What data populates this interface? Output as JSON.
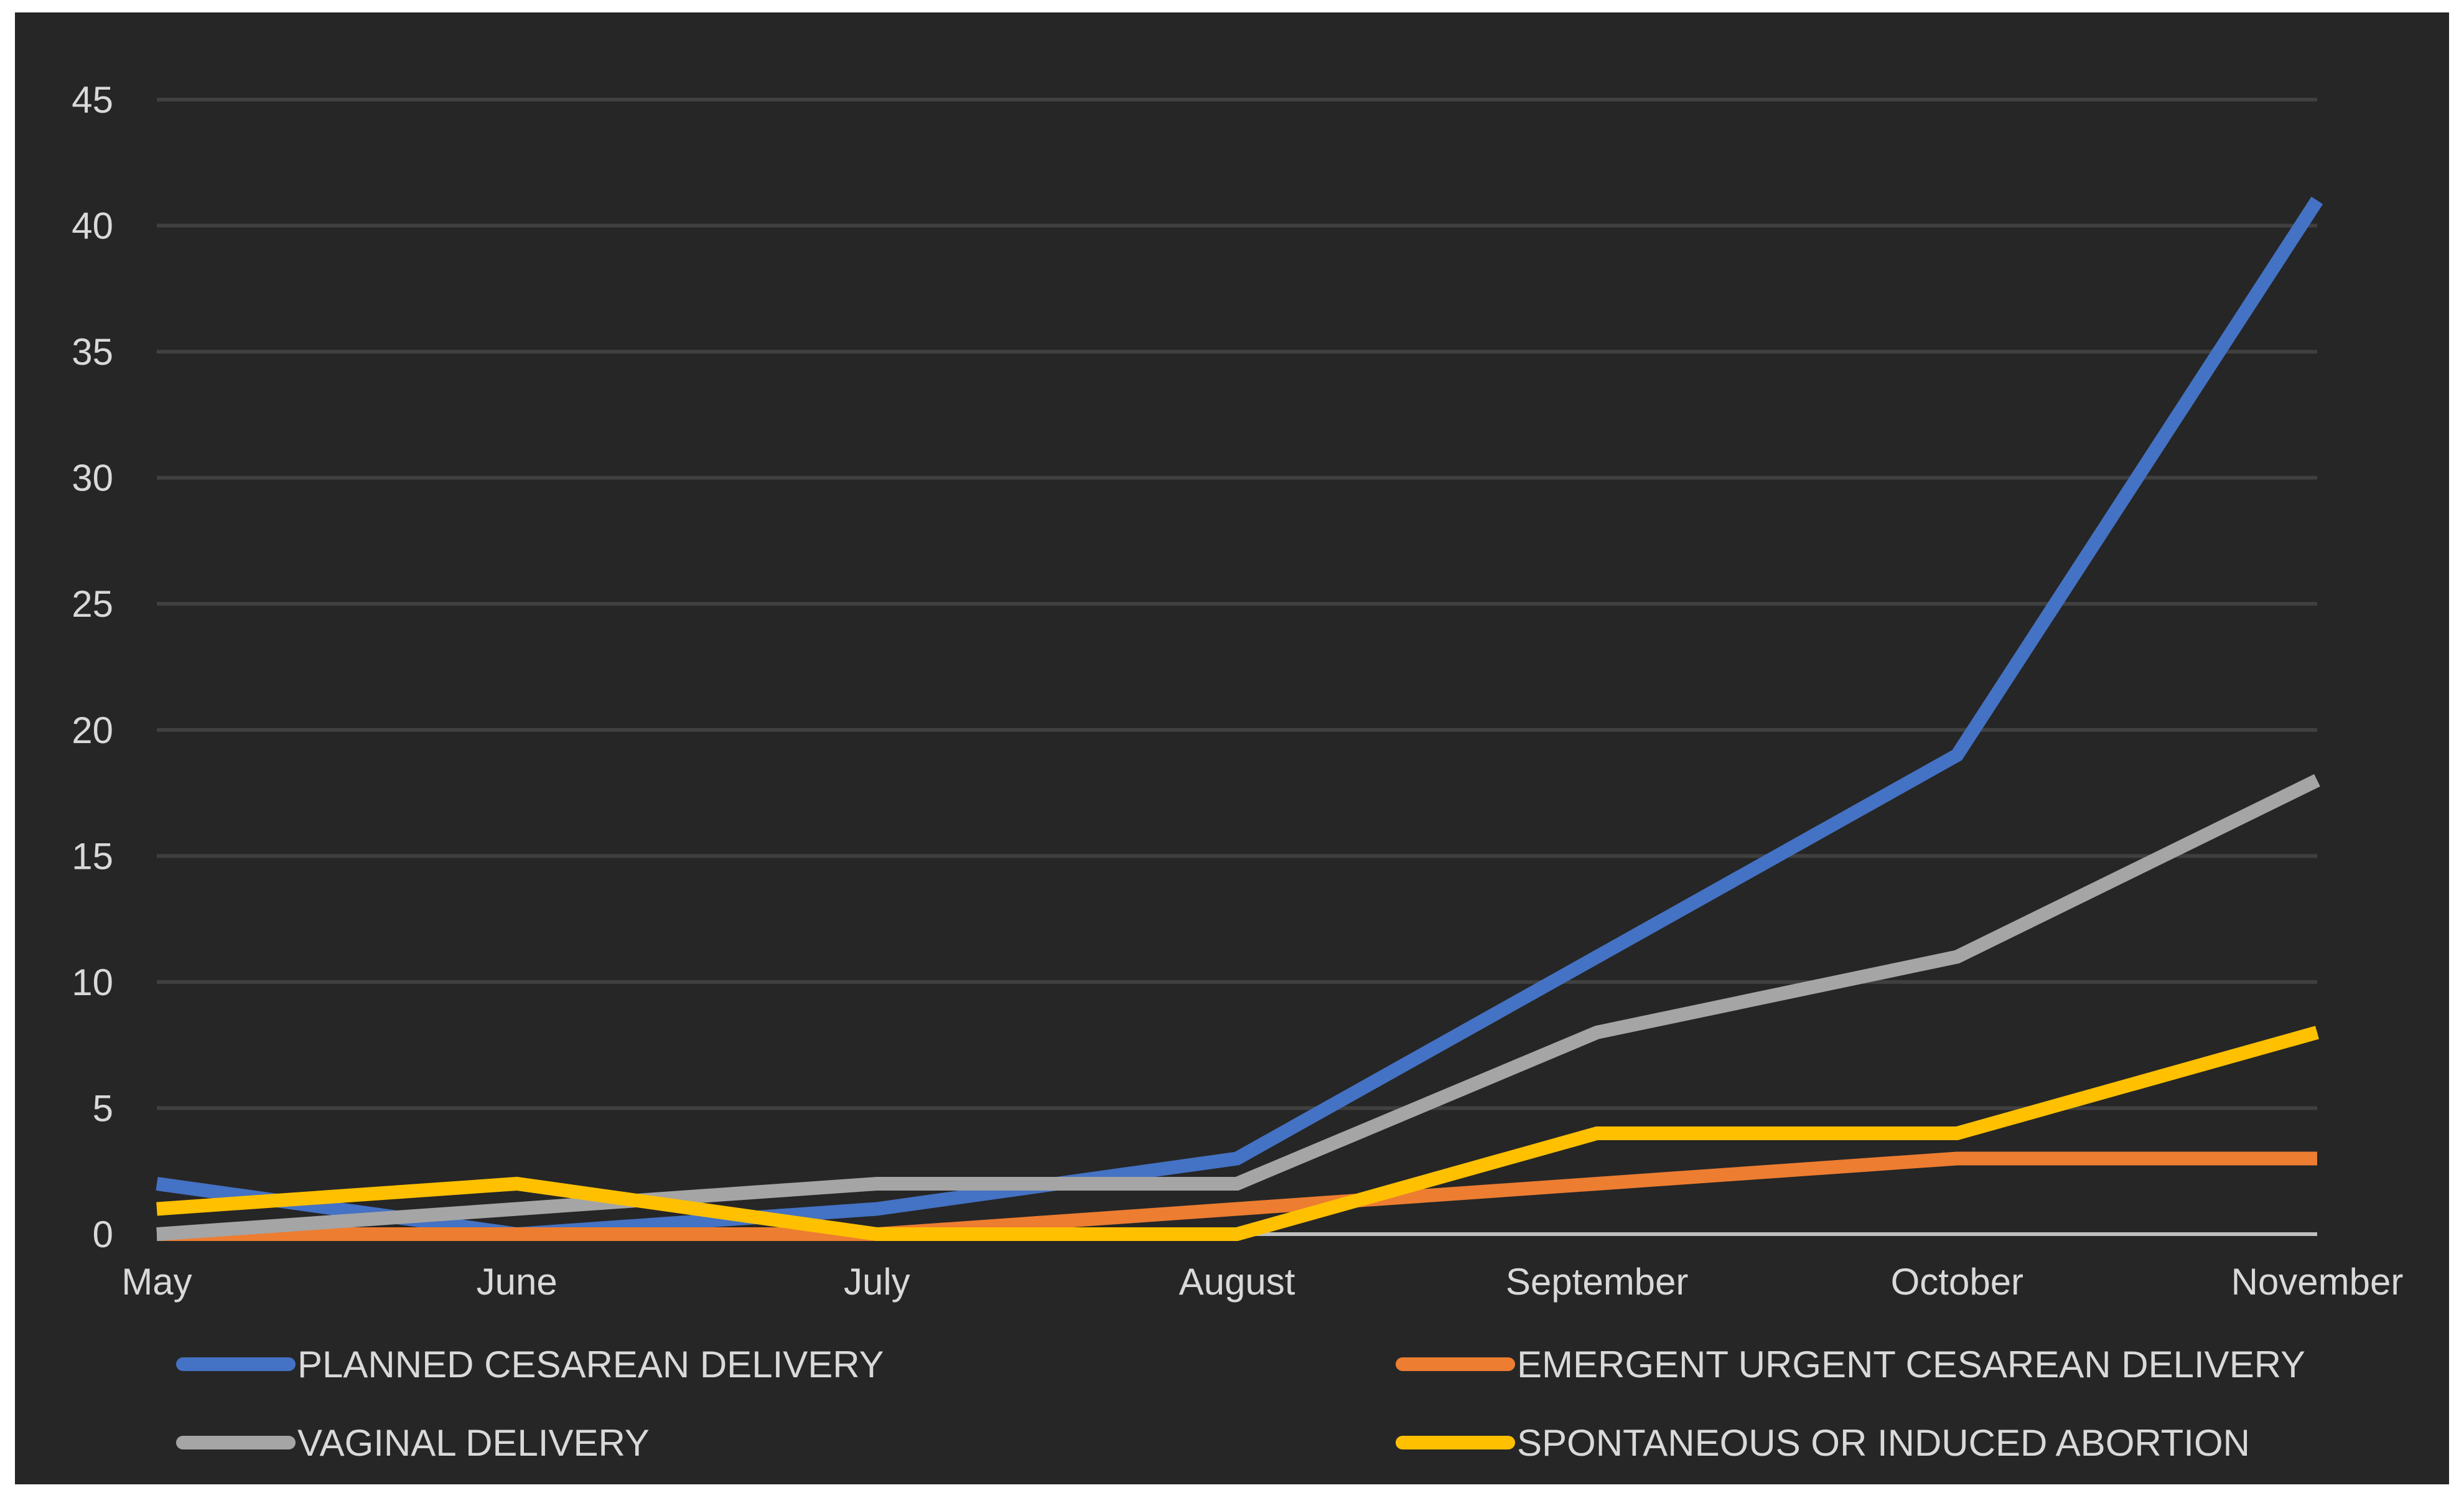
{
  "chart_data": {
    "type": "line",
    "title": "",
    "xlabel": "",
    "ylabel": "",
    "categories": [
      "May",
      "June",
      "July",
      "August",
      "September",
      "October",
      "November"
    ],
    "ylim": [
      0,
      45
    ],
    "yticks": [
      0,
      5,
      10,
      15,
      20,
      25,
      30,
      35,
      40,
      45
    ],
    "grid": true,
    "legend_position": "bottom",
    "series": [
      {
        "name": "PLANNED CESAREAN DELIVERY",
        "color": "#4472c4",
        "values": [
          2,
          0,
          1,
          3,
          11,
          19,
          41
        ]
      },
      {
        "name": "EMERGENT URGENT CESAREAN DELIVERY",
        "color": "#ed7d31",
        "values": [
          0,
          0,
          0,
          1,
          2,
          3,
          3
        ]
      },
      {
        "name": "VAGINAL DELIVERY",
        "color": "#a5a5a5",
        "values": [
          0,
          1,
          2,
          2,
          8,
          11,
          18
        ]
      },
      {
        "name": "SPONTANEOUS OR INDUCED ABORTION",
        "color": "#ffc000",
        "values": [
          1,
          2,
          0,
          0,
          4,
          4,
          8
        ]
      }
    ]
  }
}
